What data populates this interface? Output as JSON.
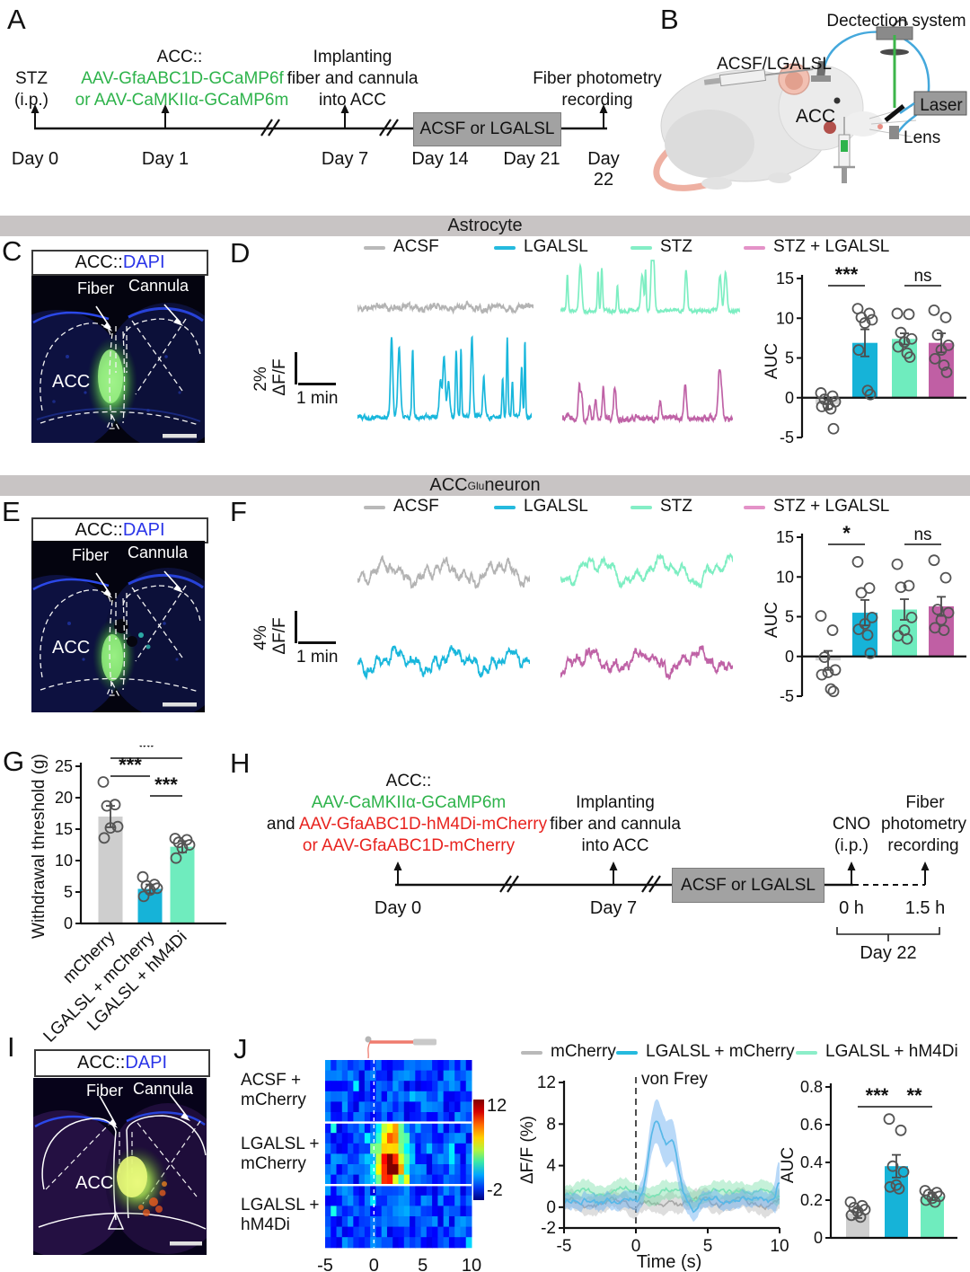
{
  "banners": {
    "astrocyte": "Astrocyte",
    "neuron_pre": "ACC",
    "neuron_sup": "Glu",
    "neuron_post": " neuron"
  },
  "panel_a": {
    "letter": "A",
    "stz1": "STZ",
    "stz2": "(i.p.)",
    "acc_head": "ACC::",
    "virus1": "AAV-GfaABC1D-GCaMP6f",
    "virus2": "or AAV-CaMKIIα-GCaMP6m",
    "imp1": "Implanting",
    "imp2": "fiber and cannula",
    "imp3": "into ACC",
    "rec1": "Fiber photometry",
    "rec2": "recording",
    "box": "ACSF or LGALSL",
    "days": [
      "Day 0",
      "Day 1",
      "Day 7",
      "Day 14",
      "Day 21",
      "Day 22"
    ]
  },
  "panel_b": {
    "letter": "B",
    "detection": "Dectection system",
    "infusion": "ACSF/LGALSL",
    "acc": "ACC",
    "laser": "Laser",
    "lens": "Lens"
  },
  "panel_c": {
    "letter": "C",
    "title_pre": "ACC::",
    "title_post": "DAPI",
    "fiber": "Fiber",
    "cannula": "Cannula",
    "acc": "ACC"
  },
  "panel_d": {
    "letter": "D",
    "legend": [
      {
        "label": "ACSF",
        "color": "#b9b9b9"
      },
      {
        "label": "LGALSL",
        "color": "#25bade"
      },
      {
        "label": "STZ",
        "color": "#84eec6"
      },
      {
        "label": "STZ + LGALSL",
        "color": "#e492c8"
      }
    ],
    "scale_amp": "2%",
    "scale_unit": "ΔF/F",
    "scale_time": "1 min",
    "traces": [
      {
        "name": "ACSF",
        "color": "#b3b3b3",
        "wave": 3,
        "noise": 5,
        "spikes": 0,
        "spikeAmp": 0,
        "base": 26,
        "seed": 11,
        "f1": 6,
        "f2": 17,
        "f3": 41
      },
      {
        "name": "STZ",
        "color": "#7deec2",
        "wave": 1.2,
        "noise": 3,
        "spikes": 13,
        "spikeAmp": 52,
        "base": 14,
        "seed": 23,
        "f1": 5,
        "f2": 13,
        "f3": 29
      },
      {
        "name": "LGALSL",
        "color": "#19b7dc",
        "wave": 1.5,
        "noise": 4,
        "spikes": 16,
        "spikeAmp": 90,
        "base": 28,
        "seed": 37,
        "f1": 4,
        "f2": 11,
        "f3": 31
      },
      {
        "name": "STZ + LGALSL",
        "color": "#bf62a6",
        "wave": 2,
        "noise": 5,
        "spikes": 11,
        "spikeAmp": 42,
        "base": 16,
        "seed": 53,
        "f1": 5,
        "f2": 13,
        "f3": 37
      }
    ],
    "chart_data": {
      "type": "bar",
      "ylabel": "AUC",
      "ylim": [
        -5,
        15
      ],
      "yticks": [
        -5,
        0,
        5,
        10,
        15
      ],
      "categories": [
        "ACSF",
        "LGALSL",
        "STZ",
        "STZ + LGALSL"
      ],
      "values": [
        -0.8,
        6.9,
        7.4,
        6.9
      ],
      "errors": [
        0.6,
        1.7,
        0.7,
        1.2
      ],
      "colors": [
        "#d4d4d4",
        "#16b3d8",
        "#6fecbe",
        "#c05fa4"
      ],
      "points": [
        [
          0.6,
          0.2,
          -0.2,
          -0.5,
          -0.9,
          -1.1,
          -1.4,
          -3.9
        ],
        [
          11.2,
          10.6,
          10.1,
          9.8,
          9.4,
          6.0,
          0.9,
          0.4
        ],
        [
          10.6,
          10.5,
          8.2,
          7.4,
          7.0,
          6.4,
          5.6,
          5.1
        ],
        [
          11.0,
          10.1,
          7.9,
          6.6,
          6.0,
          4.9,
          4.1,
          3.2
        ]
      ],
      "sig": [
        {
          "a": 0,
          "b": 1,
          "label": "***"
        },
        {
          "a": 2,
          "b": 3,
          "label": "ns"
        }
      ]
    }
  },
  "panel_e": {
    "letter": "E",
    "title_pre": "ACC::",
    "title_post": "DAPI",
    "fiber": "Fiber",
    "cannula": "Cannula",
    "acc": "ACC"
  },
  "panel_f": {
    "letter": "F",
    "legend": [
      {
        "label": "ACSF",
        "color": "#b9b9b9"
      },
      {
        "label": "LGALSL",
        "color": "#25bade"
      },
      {
        "label": "STZ",
        "color": "#84eec6"
      },
      {
        "label": "STZ + LGALSL",
        "color": "#e492c8"
      }
    ],
    "scale_amp": "4%",
    "scale_unit": "ΔF/F",
    "scale_time": "1 min",
    "traces": [
      {
        "name": "ACSF",
        "color": "#b3b3b3",
        "wave": 14,
        "noise": 6,
        "spikes": 0,
        "spikeAmp": 0,
        "base": 44,
        "seed": 71,
        "f1": 3,
        "f2": 8,
        "f3": 19
      },
      {
        "name": "STZ",
        "color": "#7deec2",
        "wave": 17,
        "noise": 5,
        "spikes": 0,
        "spikeAmp": 0,
        "base": 40,
        "seed": 83,
        "f1": 2.6,
        "f2": 7,
        "f3": 15
      },
      {
        "name": "LGALSL",
        "color": "#19b7dc",
        "wave": 15,
        "noise": 6,
        "spikes": 0,
        "spikeAmp": 0,
        "base": 46,
        "seed": 97,
        "f1": 3,
        "f2": 9,
        "f3": 21
      },
      {
        "name": "STZ + LGALSL",
        "color": "#bf62a6",
        "wave": 14,
        "noise": 7,
        "spikes": 0,
        "spikeAmp": 0,
        "base": 40,
        "seed": 113,
        "f1": 3.2,
        "f2": 8,
        "f3": 18
      }
    ],
    "chart_data": {
      "type": "bar",
      "ylabel": "AUC",
      "ylim": [
        -5,
        15
      ],
      "yticks": [
        -5,
        0,
        5,
        10,
        15
      ],
      "categories": [
        "ACSF",
        "LGALSL",
        "STZ",
        "STZ + LGALSL"
      ],
      "values": [
        -0.5,
        5.5,
        5.9,
        6.3
      ],
      "errors": [
        1.2,
        1.6,
        1.3,
        1.2
      ],
      "colors": [
        "#d4d4d4",
        "#16b3d8",
        "#6fecbe",
        "#c05fa4"
      ],
      "points": [
        [
          5.1,
          3.3,
          -0.1,
          -1.7,
          -2.0,
          -2.3,
          -4.1,
          -4.4
        ],
        [
          11.9,
          8.6,
          8.0,
          4.9,
          4.1,
          3.4,
          2.7,
          0.4
        ],
        [
          11.6,
          8.9,
          8.7,
          4.9,
          3.3,
          2.6,
          2.2
        ],
        [
          12.1,
          9.9,
          5.9,
          5.5,
          4.6,
          3.6,
          3.3
        ]
      ],
      "sig": [
        {
          "a": 0,
          "b": 1,
          "label": "*"
        },
        {
          "a": 2,
          "b": 3,
          "label": "ns"
        }
      ]
    }
  },
  "panel_g": {
    "letter": "G",
    "chart_data": {
      "type": "bar",
      "ylabel": "Withdrawal threshold (g)",
      "ylim": [
        0,
        25
      ],
      "yticks": [
        0,
        5,
        10,
        15,
        20,
        25
      ],
      "categories": [
        "mCherry",
        "LGALSL + mCherry",
        "LGALSL + hM4Di"
      ],
      "values": [
        17.0,
        5.5,
        12.2
      ],
      "errors": [
        1.7,
        0.7,
        0.9
      ],
      "colors": [
        "#cecece",
        "#16b3d8",
        "#6fecbe"
      ],
      "points": [
        [
          22.5,
          18.9,
          18.7,
          15.4,
          15.2,
          13.6
        ],
        [
          7.4,
          6.2,
          6.0,
          5.6,
          5.3,
          4.3
        ],
        [
          13.5,
          13.3,
          12.9,
          12.5,
          12.0,
          10.4
        ]
      ],
      "sig": [
        {
          "a": 0,
          "b": 2,
          "label": "**"
        },
        {
          "a": 0,
          "b": 1,
          "label": "***"
        },
        {
          "a": 1,
          "b": 2,
          "label": "***"
        }
      ]
    }
  },
  "panel_h": {
    "letter": "H",
    "acc_head": "ACC::",
    "virus_green": "AAV-CaMKIIα-GCaMP6m",
    "and_black": "and ",
    "virus_red1": "AAV-GfaABC1D-hM4Di-mCherry",
    "virus_red2": "or AAV-GfaABC1D-mCherry",
    "imp1": "Implanting",
    "imp2": "fiber and cannula",
    "imp3": "into ACC",
    "cno1": "CNO",
    "cno2": "(i.p.)",
    "rec1": "Fiber",
    "rec2": "photometry",
    "rec3": "recording",
    "box": "ACSF or LGALSL",
    "t_day0": "Day 0",
    "t_day7": "Day 7",
    "t_0h": "0 h",
    "t_15h": "1.5 h",
    "t_day22": "Day 22"
  },
  "panel_i": {
    "letter": "I",
    "title_pre": "ACC::",
    "title_post": "DAPI",
    "fiber": "Fiber",
    "cannula": "Cannula",
    "acc": "ACC"
  },
  "panel_j": {
    "letter": "J",
    "rows": [
      {
        "l1": "ACSF +",
        "l2": "mCherry"
      },
      {
        "l1": "LGALSL +",
        "l2": "mCherry"
      },
      {
        "l1": "LGALSL +",
        "l2": "hM4Di"
      }
    ],
    "heatmap": {
      "type": "heatmap",
      "xticks": [
        "-5",
        "0",
        "5",
        "10"
      ],
      "xlim": [
        -5,
        10
      ],
      "vmin": -2,
      "vmax": 12,
      "cbar_top": "12",
      "cbar_bottom": "-2",
      "cols": 26,
      "rows_per_group": 6,
      "hot_group": 1,
      "event_time": 0,
      "seed": 7
    },
    "legend": [
      {
        "label": "mCherry",
        "color": "#b9b9b9"
      },
      {
        "label": "LGALSL + mCherry",
        "color": "#25bade"
      },
      {
        "label": "LGALSL + hM4Di",
        "color": "#8ceec9"
      }
    ],
    "line": {
      "type": "line",
      "ylabel": "ΔF/F (%)",
      "xlabel": "Time (s)",
      "annotation": "von Frey",
      "ylim": [
        -2,
        12
      ],
      "yticks": [
        -2,
        0,
        4,
        8,
        12
      ],
      "xticks": [
        -5,
        0,
        5,
        10
      ],
      "series": [
        {
          "name": "mCherry",
          "color": "#a9a9a9",
          "band": "rgba(160,160,160,0.35)",
          "baseline": 0.4,
          "peak": 0,
          "peak_t": 0,
          "seed": 5
        },
        {
          "name": "LGALSL + hM4Di",
          "color": "#7ce3b6",
          "band": "rgba(110,220,160,0.4)",
          "baseline": 1.4,
          "peak": 0,
          "peak_t": 0,
          "seed": 9
        },
        {
          "name": "LGALSL + mCherry",
          "color": "#57b8e8",
          "band": "rgba(100,170,240,0.45)",
          "baseline": 0.6,
          "peak": 7.6,
          "peak_t": 1.4,
          "seed": 3
        }
      ]
    },
    "bar": {
      "type": "bar",
      "ylabel": "AUC",
      "ylim": [
        0,
        0.8
      ],
      "yticks": [
        0,
        0.2,
        0.4,
        0.6,
        0.8
      ],
      "categories": [
        "mCherry",
        "LGALSL + mCherry",
        "LGALSL + hM4Di"
      ],
      "values": [
        0.13,
        0.38,
        0.22
      ],
      "errors": [
        0.025,
        0.06,
        0.02
      ],
      "colors": [
        "#cecece",
        "#16b3d8",
        "#6fecbe"
      ],
      "points": [
        [
          0.19,
          0.17,
          0.16,
          0.15,
          0.14,
          0.12,
          0.11
        ],
        [
          0.63,
          0.57,
          0.38,
          0.35,
          0.28,
          0.27,
          0.26
        ],
        [
          0.25,
          0.24,
          0.23,
          0.22,
          0.21,
          0.2,
          0.19
        ]
      ],
      "sig": [
        {
          "a": 0,
          "b": 1,
          "label": "***"
        },
        {
          "a": 1,
          "b": 2,
          "label": "**"
        }
      ]
    }
  }
}
